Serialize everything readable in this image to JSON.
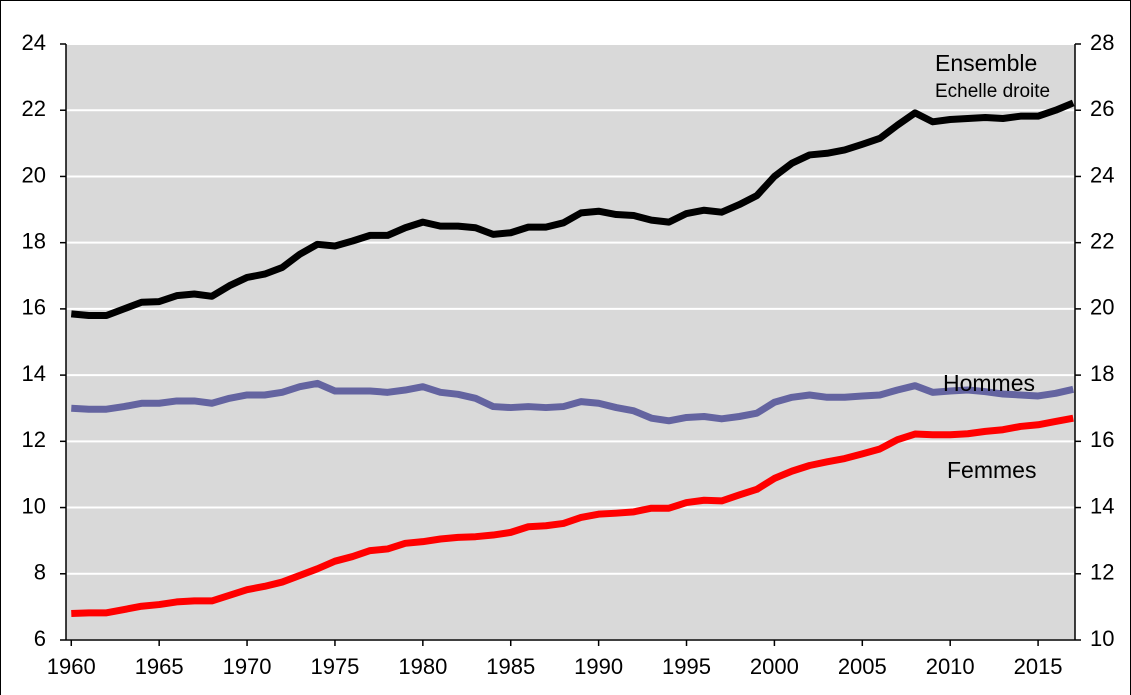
{
  "chart_data": {
    "type": "line",
    "x": [
      1960,
      1961,
      1962,
      1963,
      1964,
      1965,
      1966,
      1967,
      1968,
      1969,
      1970,
      1971,
      1972,
      1973,
      1974,
      1975,
      1976,
      1977,
      1978,
      1979,
      1980,
      1981,
      1982,
      1983,
      1984,
      1985,
      1986,
      1987,
      1988,
      1989,
      1990,
      1991,
      1992,
      1993,
      1994,
      1995,
      1996,
      1997,
      1998,
      1999,
      2000,
      2001,
      2002,
      2003,
      2004,
      2005,
      2006,
      2007,
      2008,
      2009,
      2010,
      2011,
      2012,
      2013,
      2014,
      2015,
      2016,
      2017
    ],
    "xlim": [
      1959.7,
      2017.1
    ],
    "xticks": [
      1960,
      1965,
      1970,
      1975,
      1980,
      1985,
      1990,
      1995,
      2000,
      2005,
      2010,
      2015
    ],
    "ylim": [
      6,
      24
    ],
    "yticks": [
      6,
      8,
      10,
      12,
      14,
      16,
      18,
      20,
      22,
      24
    ],
    "y2lim": [
      10,
      28
    ],
    "y2ticks": [
      10,
      12,
      14,
      16,
      18,
      20,
      22,
      24,
      26,
      28
    ],
    "grid": true,
    "annotation": "Echelle droite",
    "series": [
      {
        "name": "Ensemble",
        "color": "#000000",
        "axis": "y2",
        "values": [
          19.85,
          19.8,
          19.8,
          20.0,
          20.2,
          20.22,
          20.4,
          20.45,
          20.38,
          20.7,
          20.95,
          21.05,
          21.25,
          21.65,
          21.95,
          21.9,
          22.05,
          22.22,
          22.22,
          22.45,
          22.62,
          22.5,
          22.5,
          22.45,
          22.25,
          22.3,
          22.47,
          22.47,
          22.6,
          22.9,
          22.95,
          22.85,
          22.82,
          22.68,
          22.62,
          22.88,
          22.98,
          22.92,
          23.15,
          23.42,
          24.0,
          24.4,
          24.65,
          24.7,
          24.8,
          24.97,
          25.15,
          25.55,
          25.92,
          25.65,
          25.72,
          25.75,
          25.78,
          25.75,
          25.82,
          25.82,
          26.0,
          26.22
        ]
      },
      {
        "name": "Hommes",
        "color": "#6464a0",
        "values": [
          13.0,
          12.97,
          12.97,
          13.05,
          13.15,
          13.15,
          13.22,
          13.22,
          13.15,
          13.3,
          13.4,
          13.4,
          13.48,
          13.65,
          13.75,
          13.52,
          13.52,
          13.52,
          13.48,
          13.55,
          13.65,
          13.48,
          13.42,
          13.3,
          13.05,
          13.02,
          13.05,
          13.02,
          13.05,
          13.2,
          13.15,
          13.02,
          12.92,
          12.7,
          12.62,
          12.72,
          12.75,
          12.68,
          12.75,
          12.85,
          13.18,
          13.33,
          13.4,
          13.33,
          13.33,
          13.37,
          13.4,
          13.55,
          13.68,
          13.48,
          13.52,
          13.55,
          13.5,
          13.43,
          13.4,
          13.37,
          13.45,
          13.57
        ]
      },
      {
        "name": "Femmes",
        "color": "#ff0000",
        "values": [
          6.8,
          6.82,
          6.82,
          6.92,
          7.02,
          7.07,
          7.15,
          7.18,
          7.18,
          7.35,
          7.52,
          7.62,
          7.75,
          7.95,
          8.15,
          8.38,
          8.52,
          8.7,
          8.75,
          8.92,
          8.97,
          9.05,
          9.1,
          9.12,
          9.17,
          9.25,
          9.42,
          9.45,
          9.52,
          9.7,
          9.8,
          9.83,
          9.87,
          9.98,
          9.98,
          10.15,
          10.22,
          10.2,
          10.38,
          10.55,
          10.88,
          11.1,
          11.27,
          11.38,
          11.48,
          11.62,
          11.77,
          12.05,
          12.22,
          12.2,
          12.2,
          12.23,
          12.3,
          12.35,
          12.45,
          12.5,
          12.6,
          12.7
        ]
      }
    ]
  }
}
